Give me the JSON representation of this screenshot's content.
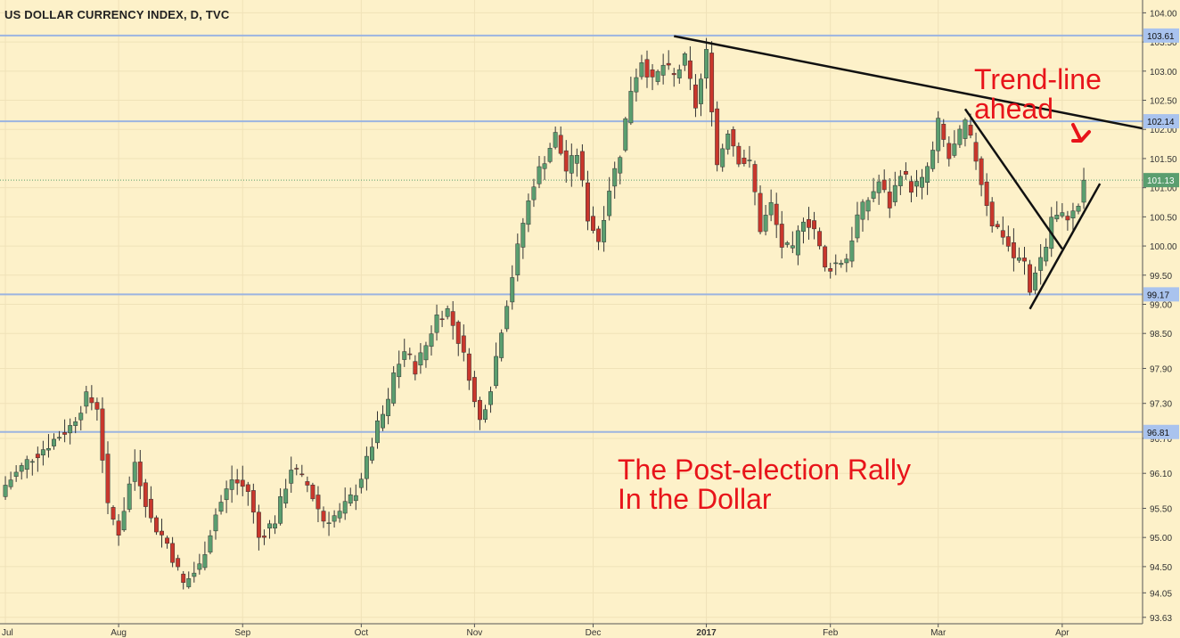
{
  "chart_data": {
    "type": "candlestick",
    "title": "US DOLLAR CURRENCY INDEX, D, TVC",
    "colors": {
      "up": "#5a9e6f",
      "down": "#c9372c",
      "background": "#fdf1c9",
      "hline": "#9bb4e0",
      "grid": "#f0e2b8",
      "text": "#333333",
      "annotation": "#e8141a",
      "last_price": "#5a9e6f"
    },
    "ylim": [
      93.5,
      104.2
    ],
    "y_ticks": [
      "104.00",
      "103.50",
      "103.00",
      "102.50",
      "102.00",
      "101.50",
      "101.00",
      "100.50",
      "100.00",
      "99.50",
      "99.00",
      "98.50",
      "97.90",
      "97.30",
      "96.70",
      "96.10",
      "95.50",
      "95.00",
      "94.50",
      "94.05",
      "93.63"
    ],
    "x_ticks": [
      {
        "label": "Aug",
        "index": 21
      },
      {
        "label": "Sep",
        "index": 44
      },
      {
        "label": "Oct",
        "index": 66
      },
      {
        "label": "Nov",
        "index": 87
      },
      {
        "label": "Dec",
        "index": 109
      },
      {
        "label": "2017",
        "index": 130
      },
      {
        "label": "Feb",
        "index": 153
      },
      {
        "label": "Mar",
        "index": 173
      },
      {
        "label": "Apr",
        "index": 196
      }
    ],
    "first_tick_label": "Jul",
    "horizontal_levels": [
      {
        "label": "103.61",
        "value": 103.61
      },
      {
        "label": "102.14",
        "value": 102.14
      },
      {
        "label": "99.17",
        "value": 99.17
      },
      {
        "label": "96.81",
        "value": 96.81
      }
    ],
    "last_price": {
      "label": "101.13",
      "value": 101.13
    },
    "trendlines": [
      {
        "from": [
          124,
          103.6
        ],
        "to": [
          242,
          101.45
        ]
      },
      {
        "from": [
          178,
          102.35
        ],
        "to": [
          196,
          99.95
        ]
      },
      {
        "from": [
          190,
          98.92
        ],
        "to": [
          203,
          101.07
        ]
      }
    ],
    "annotations": [
      {
        "lines": [
          "The Post-election Rally",
          "In the Dollar"
        ]
      },
      {
        "lines": [
          "Trend-line",
          "ahead"
        ]
      }
    ],
    "keypoints": [
      [
        0,
        95.9
      ],
      [
        4,
        96.3
      ],
      [
        8,
        96.6
      ],
      [
        12,
        96.9
      ],
      [
        15,
        97.4
      ],
      [
        17,
        97.25
      ],
      [
        19,
        95.5
      ],
      [
        21,
        95.1
      ],
      [
        24,
        96.3
      ],
      [
        27,
        95.3
      ],
      [
        30,
        94.9
      ],
      [
        33,
        94.2
      ],
      [
        36,
        94.5
      ],
      [
        39,
        95.4
      ],
      [
        42,
        96.0
      ],
      [
        45,
        95.8
      ],
      [
        47,
        95.0
      ],
      [
        50,
        95.3
      ],
      [
        53,
        96.2
      ],
      [
        56,
        95.9
      ],
      [
        59,
        95.3
      ],
      [
        62,
        95.4
      ],
      [
        65,
        95.8
      ],
      [
        67,
        96.3
      ],
      [
        69,
        96.9
      ],
      [
        71,
        97.3
      ],
      [
        72,
        97.8
      ],
      [
        74,
        98.2
      ],
      [
        76,
        97.9
      ],
      [
        78,
        98.3
      ],
      [
        80,
        98.8
      ],
      [
        82,
        98.9
      ],
      [
        84,
        98.4
      ],
      [
        86,
        97.8
      ],
      [
        87,
        97.3
      ],
      [
        88,
        97.0
      ],
      [
        90,
        97.6
      ],
      [
        92,
        98.6
      ],
      [
        94,
        99.5
      ],
      [
        96,
        100.4
      ],
      [
        98,
        101.1
      ],
      [
        100,
        101.5
      ],
      [
        102,
        101.9
      ],
      [
        104,
        101.3
      ],
      [
        106,
        101.6
      ],
      [
        108,
        100.5
      ],
      [
        110,
        100.1
      ],
      [
        112,
        101.0
      ],
      [
        114,
        101.6
      ],
      [
        116,
        102.7
      ],
      [
        118,
        103.2
      ],
      [
        120,
        102.8
      ],
      [
        122,
        103.1
      ],
      [
        124,
        102.9
      ],
      [
        126,
        103.2
      ],
      [
        128,
        102.4
      ],
      [
        130,
        103.3
      ],
      [
        131,
        102.4
      ],
      [
        132,
        101.4
      ],
      [
        134,
        102.0
      ],
      [
        136,
        101.5
      ],
      [
        138,
        101.4
      ],
      [
        139,
        100.9
      ],
      [
        140,
        100.3
      ],
      [
        142,
        100.7
      ],
      [
        144,
        100.0
      ],
      [
        146,
        99.9
      ],
      [
        148,
        100.5
      ],
      [
        150,
        100.3
      ],
      [
        152,
        99.6
      ],
      [
        154,
        99.7
      ],
      [
        156,
        99.8
      ],
      [
        158,
        100.5
      ],
      [
        160,
        100.8
      ],
      [
        162,
        101.1
      ],
      [
        164,
        100.7
      ],
      [
        166,
        101.3
      ],
      [
        168,
        101.0
      ],
      [
        170,
        101.1
      ],
      [
        172,
        101.6
      ],
      [
        173,
        102.1
      ],
      [
        175,
        101.5
      ],
      [
        176,
        101.7
      ],
      [
        178,
        102.1
      ],
      [
        180,
        101.5
      ],
      [
        181,
        101.1
      ],
      [
        183,
        100.4
      ],
      [
        185,
        100.2
      ],
      [
        187,
        99.8
      ],
      [
        189,
        99.7
      ],
      [
        190,
        99.2
      ],
      [
        191,
        99.6
      ],
      [
        193,
        100.0
      ],
      [
        194,
        100.5
      ],
      [
        196,
        100.5
      ],
      [
        198,
        100.55
      ],
      [
        199,
        100.7
      ],
      [
        200,
        101.13
      ]
    ]
  }
}
